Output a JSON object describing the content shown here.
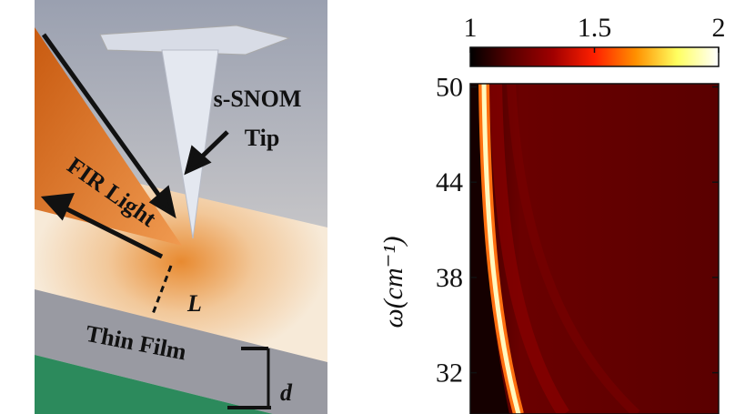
{
  "diagram": {
    "tip_label": [
      "s-SNOM",
      "Tip"
    ],
    "light_label": "FIR Light",
    "distance_label": "L",
    "film_label": "Thin Film",
    "thickness_label": "d"
  },
  "chart_data": {
    "type": "heatmap",
    "ylabel": "ω(cm⁻¹)",
    "ylim": [
      29.4,
      50.2
    ],
    "yticks": [
      50,
      44,
      38,
      32
    ],
    "clim": [
      1,
      2
    ],
    "cticks": [
      1,
      1.5,
      2
    ],
    "colormap": [
      "#000000",
      "#5a0000",
      "#a00000",
      "#ff2000",
      "#ff9000",
      "#ffff60",
      "#ffffff"
    ]
  }
}
